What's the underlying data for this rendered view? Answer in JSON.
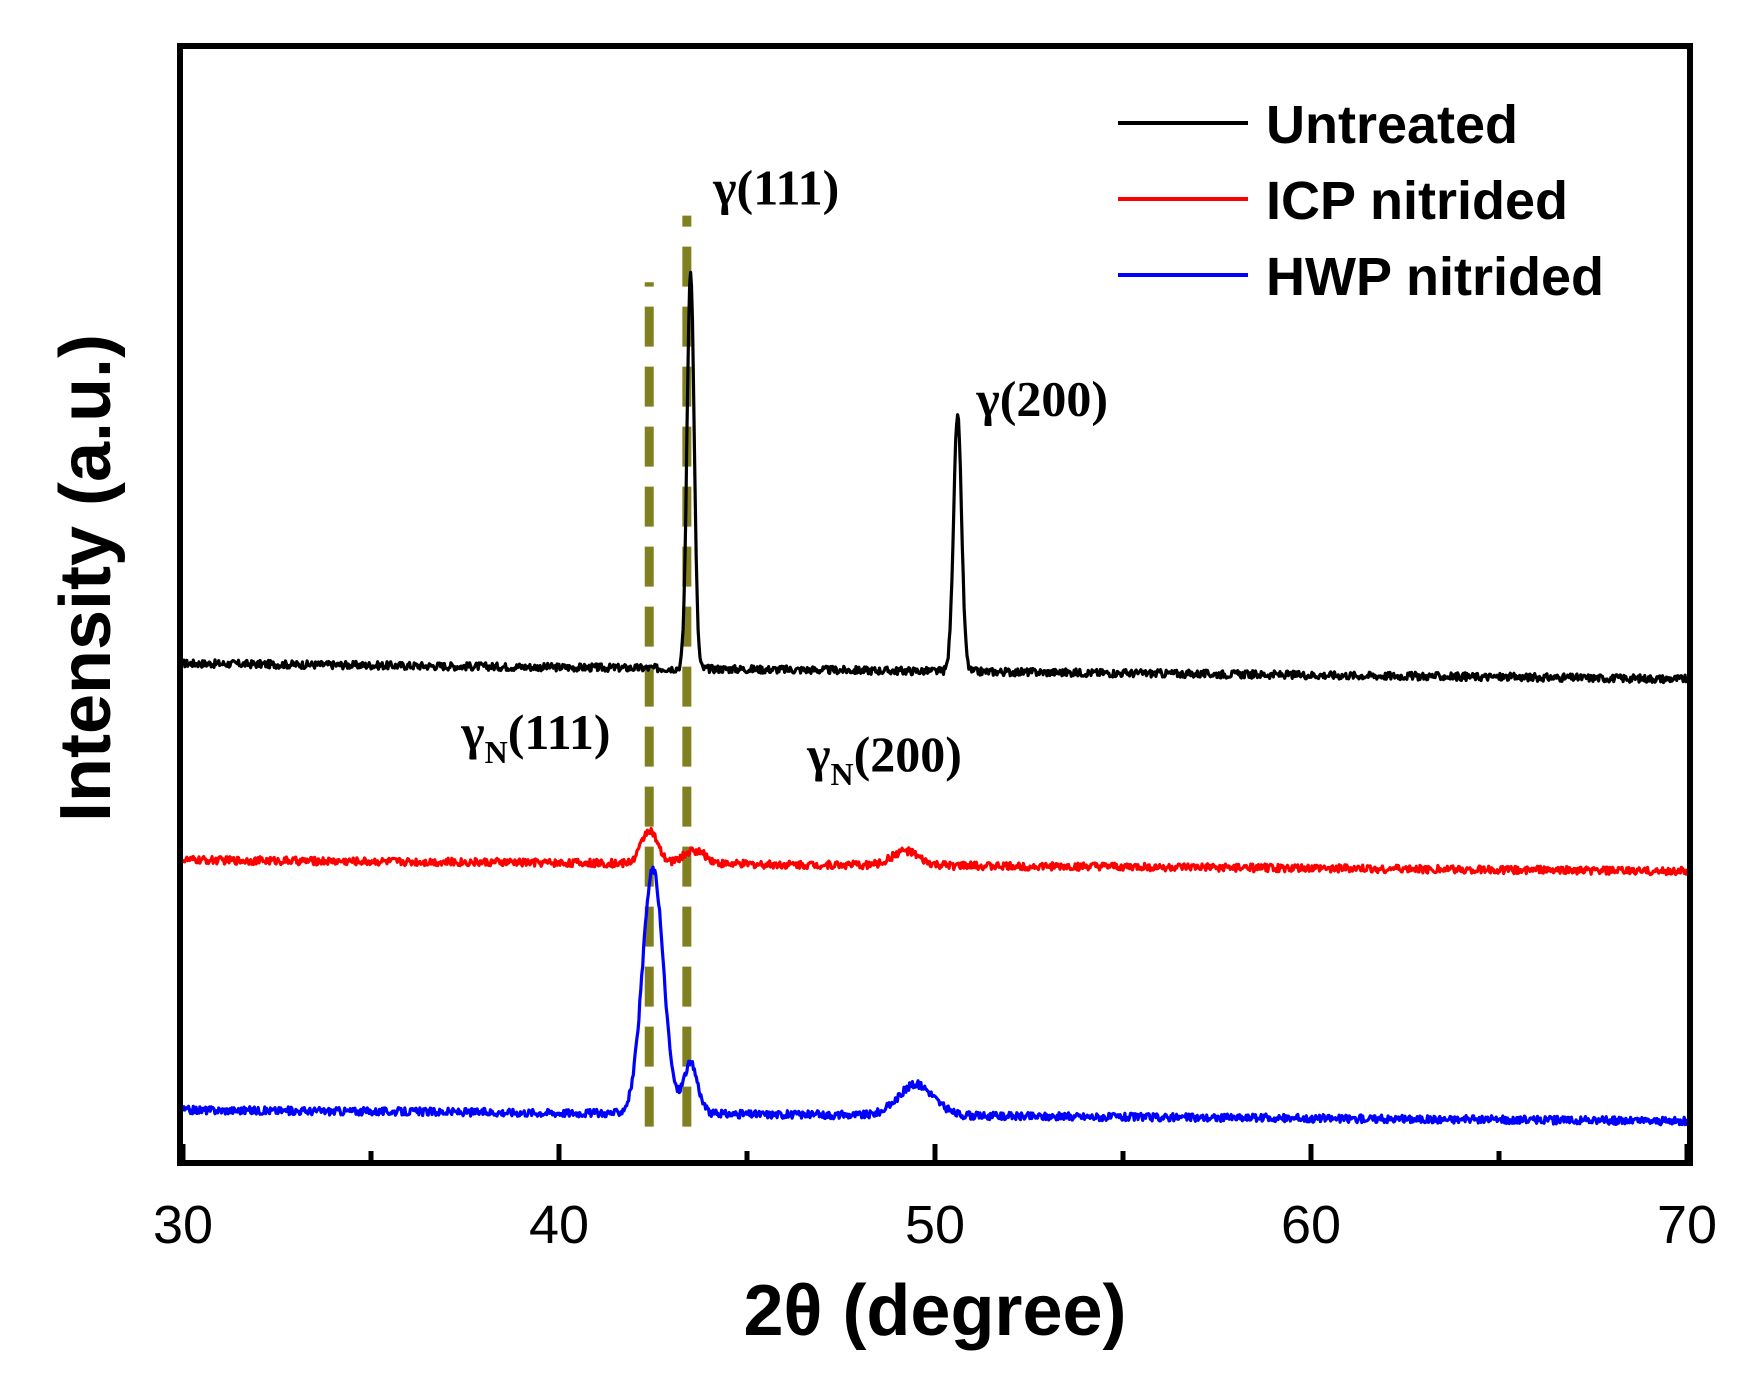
{
  "chart_data": {
    "type": "line",
    "title": "",
    "xlabel": "2θ (degree)",
    "ylabel": "Intensity (a.u.)",
    "xlim": [
      30,
      70
    ],
    "ylim": [
      0,
      100
    ],
    "xticks": [
      30,
      40,
      50,
      60,
      70
    ],
    "xticks_minor": [
      35,
      45,
      55,
      65
    ],
    "yticks_shown": false,
    "legend_position": "top-right",
    "series": [
      {
        "name": "Untreated",
        "color": "#000000",
        "baseline_start": 44.7,
        "baseline_end": 43.3,
        "noise": 0.35,
        "peaks": [
          {
            "center": 43.5,
            "height": 36,
            "fwhm": 0.22
          },
          {
            "center": 50.6,
            "height": 23,
            "fwhm": 0.25
          }
        ]
      },
      {
        "name": "ICP nitrided",
        "color": "#ff0000",
        "baseline_start": 27.0,
        "baseline_end": 26.0,
        "noise": 0.35,
        "peaks": [
          {
            "center": 42.4,
            "height": 3.0,
            "fwhm": 0.5
          },
          {
            "center": 43.6,
            "height": 1.2,
            "fwhm": 0.7
          },
          {
            "center": 49.2,
            "height": 1.3,
            "fwhm": 0.8
          }
        ]
      },
      {
        "name": "HWP nitrided",
        "color": "#0000ff",
        "baseline_start": 4.5,
        "baseline_end": 3.5,
        "noise": 0.35,
        "peaks": [
          {
            "center": 42.5,
            "height": 22,
            "fwhm": 0.65
          },
          {
            "center": 43.5,
            "height": 4.5,
            "fwhm": 0.45
          },
          {
            "center": 49.5,
            "height": 2.8,
            "fwhm": 1.1
          }
        ]
      }
    ],
    "reference_lines": [
      {
        "x": 42.4,
        "ymin": 3.0,
        "ymax": 79,
        "color": "#808020",
        "style": "dashed"
      },
      {
        "x": 43.4,
        "ymin": 3.0,
        "ymax": 85,
        "color": "#808020",
        "style": "dashed"
      }
    ],
    "annotations": [
      {
        "symbol": "γ",
        "subscript": "",
        "text": "(111)",
        "x": 44.1,
        "y": 86
      },
      {
        "symbol": "γ",
        "subscript": "",
        "text": "(200)",
        "x": 51.1,
        "y": 67
      },
      {
        "symbol": "γ",
        "subscript": "N",
        "text": "(111)",
        "x": 37.4,
        "y": 37
      },
      {
        "symbol": "γ",
        "subscript": "N",
        "text": "(200)",
        "x": 46.6,
        "y": 35
      }
    ]
  }
}
